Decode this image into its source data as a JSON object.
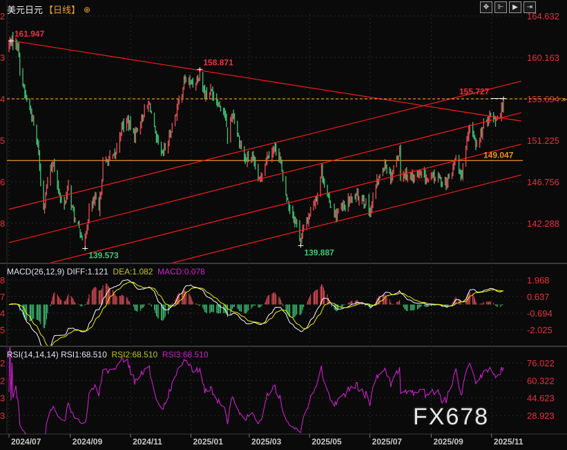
{
  "header": {
    "symbol": "美元日元",
    "period": "【日线】",
    "icon": "crosshair-circle-icon"
  },
  "toolbar": {
    "icons": [
      "move-crosshair-icon",
      "zoom-range-icon",
      "play-forward-icon",
      "jump-to-end-icon"
    ],
    "glyphs": [
      "✥",
      "⊩",
      "▶",
      "⇥"
    ]
  },
  "watermark": "FX678",
  "colors": {
    "background": "#0a0a0a",
    "up": "#e8505a",
    "down": "#3cc878",
    "axis_text": "#e8323c",
    "trendline": "#ff1a1a",
    "level": "#f0901e",
    "diff": "#ffffff",
    "dea": "#f0f000",
    "rsi": "#e020e0"
  },
  "chart_data": [
    {
      "type": "candlestick",
      "title": "美元日元【日线】",
      "yticks": [
        "164.632",
        "160.163",
        "155.694",
        "151.225",
        "146.756",
        "142.288"
      ],
      "left_axis_fragments": [
        "2",
        "3",
        "4",
        "5",
        "6",
        "8"
      ],
      "xticks": [
        "2024/07",
        "2024/09",
        "2024/11",
        "2025/01",
        "2025/03",
        "2025/05",
        "2025/07",
        "2025/09",
        "2025/11"
      ],
      "grid": true,
      "closes": [
        [
          "2024-07-01",
          161.5
        ],
        [
          "2024-07-03",
          161.9
        ],
        [
          "2024-07-10",
          161.6
        ],
        [
          "2024-07-12",
          159.0
        ],
        [
          "2024-07-17",
          156.2
        ],
        [
          "2024-07-24",
          153.9
        ],
        [
          "2024-07-31",
          150.0
        ],
        [
          "2024-08-02",
          146.5
        ],
        [
          "2024-08-05",
          144.2
        ],
        [
          "2024-08-09",
          146.8
        ],
        [
          "2024-08-15",
          149.0
        ],
        [
          "2024-08-20",
          145.5
        ],
        [
          "2024-08-26",
          144.3
        ],
        [
          "2024-08-30",
          146.2
        ],
        [
          "2024-09-06",
          142.3
        ],
        [
          "2024-09-11",
          141.4
        ],
        [
          "2024-09-16",
          140.4
        ],
        [
          "2024-09-20",
          143.8
        ],
        [
          "2024-09-26",
          144.8
        ],
        [
          "2024-09-30",
          143.5
        ],
        [
          "2024-10-04",
          148.6
        ],
        [
          "2024-10-10",
          149.2
        ],
        [
          "2024-10-16",
          149.5
        ],
        [
          "2024-10-23",
          152.7
        ],
        [
          "2024-10-29",
          153.3
        ],
        [
          "2024-11-05",
          151.8
        ],
        [
          "2024-11-15",
          154.3
        ],
        [
          "2024-11-20",
          155.2
        ],
        [
          "2024-11-27",
          151.2
        ],
        [
          "2024-12-03",
          149.6
        ],
        [
          "2024-12-09",
          151.2
        ],
        [
          "2024-12-18",
          154.7
        ],
        [
          "2024-12-26",
          157.8
        ],
        [
          "2025-01-03",
          157.3
        ],
        [
          "2025-01-10",
          158.3
        ],
        [
          "2025-01-15",
          156.3
        ],
        [
          "2025-01-22",
          156.5
        ],
        [
          "2025-01-29",
          155.2
        ],
        [
          "2025-02-04",
          154.3
        ],
        [
          "2025-02-07",
          151.4
        ],
        [
          "2025-02-12",
          154.3
        ],
        [
          "2025-02-18",
          151.5
        ],
        [
          "2025-02-25",
          149.0
        ],
        [
          "2025-03-03",
          149.5
        ],
        [
          "2025-03-11",
          146.8
        ],
        [
          "2025-03-19",
          149.6
        ],
        [
          "2025-03-26",
          150.4
        ],
        [
          "2025-04-01",
          149.5
        ],
        [
          "2025-04-04",
          146.8
        ],
        [
          "2025-04-10",
          144.2
        ],
        [
          "2025-04-16",
          142.8
        ],
        [
          "2025-04-22",
          140.7
        ],
        [
          "2025-04-29",
          142.8
        ],
        [
          "2025-05-09",
          145.5
        ],
        [
          "2025-05-13",
          148.0
        ],
        [
          "2025-05-20",
          144.8
        ],
        [
          "2025-05-27",
          143.2
        ],
        [
          "2025-06-03",
          143.9
        ],
        [
          "2025-06-10",
          144.7
        ],
        [
          "2025-06-17",
          145.2
        ],
        [
          "2025-06-24",
          145.0
        ],
        [
          "2025-07-01",
          143.5
        ],
        [
          "2025-07-08",
          146.6
        ],
        [
          "2025-07-16",
          148.8
        ],
        [
          "2025-07-22",
          147.3
        ],
        [
          "2025-07-31",
          150.2
        ],
        [
          "2025-08-01",
          147.5
        ],
        [
          "2025-08-08",
          147.6
        ],
        [
          "2025-08-15",
          147.2
        ],
        [
          "2025-08-22",
          147.5
        ],
        [
          "2025-08-29",
          147.0
        ],
        [
          "2025-09-05",
          147.4
        ],
        [
          "2025-09-10",
          147.0
        ],
        [
          "2025-09-17",
          146.6
        ],
        [
          "2025-09-22",
          147.8
        ],
        [
          "2025-09-26",
          149.5
        ],
        [
          "2025-10-01",
          147.2
        ],
        [
          "2025-10-06",
          150.3
        ],
        [
          "2025-10-10",
          152.6
        ],
        [
          "2025-10-14",
          151.8
        ],
        [
          "2025-10-17",
          150.6
        ],
        [
          "2025-10-24",
          152.8
        ],
        [
          "2025-10-30",
          154.0
        ],
        [
          "2025-11-05",
          153.6
        ],
        [
          "2025-11-10",
          154.1
        ],
        [
          "2025-11-13",
          155.2
        ]
      ],
      "annotations": [
        {
          "label": "161.947",
          "date": "2024-07-03",
          "price": 161.947,
          "kind": "high",
          "color": "#f03040"
        },
        {
          "label": "139.573",
          "date": "2024-09-16",
          "price": 139.573,
          "kind": "low",
          "color": "#3cc878"
        },
        {
          "label": "158.871",
          "date": "2025-01-10",
          "price": 158.871,
          "kind": "high",
          "color": "#f03040"
        },
        {
          "label": "139.887",
          "date": "2025-04-22",
          "price": 139.887,
          "kind": "low",
          "color": "#3cc878"
        },
        {
          "label": "155.727",
          "date": "2025-11-13",
          "price": 155.727,
          "kind": "high",
          "color": "#f03040"
        }
      ],
      "trendlines": [
        {
          "from": [
            "2024-07-01",
            162.0
          ],
          "to": [
            "2025-12-01",
            153.3
          ]
        },
        {
          "from": [
            "2024-07-01",
            143.8
          ],
          "to": [
            "2025-12-01",
            157.6
          ]
        },
        {
          "from": [
            "2024-07-01",
            140.2
          ],
          "to": [
            "2025-12-01",
            154.2
          ]
        },
        {
          "from": [
            "2024-07-01",
            136.9
          ],
          "to": [
            "2025-12-01",
            150.8
          ]
        },
        {
          "from": [
            "2024-07-01",
            133.6
          ],
          "to": [
            "2025-12-01",
            147.5
          ]
        }
      ],
      "levels": [
        {
          "price": 149.047,
          "label": "149.047",
          "style": "solid"
        },
        {
          "price": 155.694,
          "label": "",
          "style": "dashed"
        }
      ]
    },
    {
      "type": "line",
      "title": "MACD(26,12,9)",
      "series_labels": {
        "diff": "DIFF:1.121",
        "dea": "DEA:1.082",
        "macd": "MACD:0.078"
      },
      "yticks": [
        "1.968",
        "0.637",
        "-0.694",
        "-2.025"
      ],
      "left_axis_fragments": [
        "8",
        "7",
        "4",
        "5"
      ]
    },
    {
      "type": "line",
      "title": "RSI(14,14,14)",
      "series_labels": {
        "rsi1": "RSI1:68.510",
        "rsi2": "RSI2:68.510",
        "rsi3": "RSI3:68.510"
      },
      "yticks": [
        "76.022",
        "60.322",
        "44.623",
        "28.923"
      ],
      "left_axis_fragments": [
        "2",
        "2",
        "3",
        "3"
      ]
    }
  ]
}
